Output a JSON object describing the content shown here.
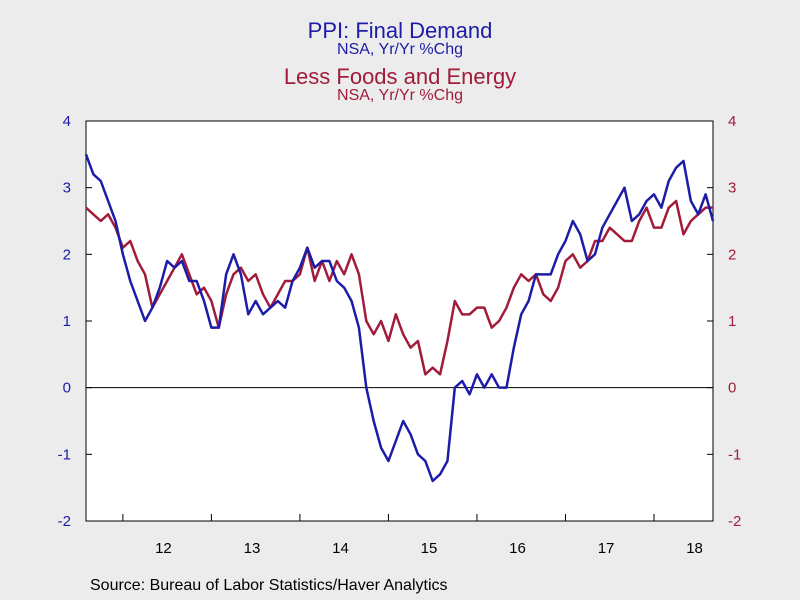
{
  "titles": {
    "series1_title": "PPI: Final Demand",
    "series1_subtitle": "NSA, Yr/Yr %Chg",
    "series2_title": "Less Foods and Energy",
    "series2_subtitle": "NSA, Yr/Yr %Chg"
  },
  "source": "Source:  Bureau of Labor Statistics/Haver Analytics",
  "colors": {
    "series1": "#1c1ca8",
    "series2": "#a11c3a",
    "background": "#ececec",
    "plot_background": "#ffffff"
  },
  "chart_data": {
    "type": "line",
    "x_ticks": [
      "12",
      "13",
      "14",
      "15",
      "16",
      "17",
      "18"
    ],
    "x_range": [
      "2011-08",
      "2018-09"
    ],
    "ylim": [
      -2,
      4
    ],
    "y_ticks_left": [
      "4",
      "3",
      "2",
      "1",
      "0",
      "-1",
      "-2"
    ],
    "y_ticks_right": [
      "4",
      "3",
      "2",
      "1",
      "0",
      "-1",
      "-2"
    ],
    "zero_line": true,
    "grid": false,
    "series": [
      {
        "name": "PPI: Final Demand",
        "axis": "left",
        "points": [
          [
            "2011-08",
            3.5
          ],
          [
            "2011-09",
            3.2
          ],
          [
            "2011-10",
            3.1
          ],
          [
            "2011-11",
            2.8
          ],
          [
            "2011-12",
            2.5
          ],
          [
            "2012-01",
            2.0
          ],
          [
            "2012-02",
            1.6
          ],
          [
            "2012-03",
            1.3
          ],
          [
            "2012-04",
            1.0
          ],
          [
            "2012-05",
            1.2
          ],
          [
            "2012-06",
            1.5
          ],
          [
            "2012-07",
            1.9
          ],
          [
            "2012-08",
            1.8
          ],
          [
            "2012-09",
            1.9
          ],
          [
            "2012-10",
            1.6
          ],
          [
            "2012-11",
            1.6
          ],
          [
            "2012-12",
            1.3
          ],
          [
            "2013-01",
            0.9
          ],
          [
            "2013-02",
            0.9
          ],
          [
            "2013-03",
            1.7
          ],
          [
            "2013-04",
            2.0
          ],
          [
            "2013-05",
            1.7
          ],
          [
            "2013-06",
            1.1
          ],
          [
            "2013-07",
            1.3
          ],
          [
            "2013-08",
            1.1
          ],
          [
            "2013-09",
            1.2
          ],
          [
            "2013-10",
            1.3
          ],
          [
            "2013-11",
            1.2
          ],
          [
            "2013-12",
            1.6
          ],
          [
            "2014-01",
            1.8
          ],
          [
            "2014-02",
            2.1
          ],
          [
            "2014-03",
            1.8
          ],
          [
            "2014-04",
            1.9
          ],
          [
            "2014-05",
            1.9
          ],
          [
            "2014-06",
            1.6
          ],
          [
            "2014-07",
            1.5
          ],
          [
            "2014-08",
            1.3
          ],
          [
            "2014-09",
            0.9
          ],
          [
            "2014-10",
            0.0
          ],
          [
            "2014-11",
            -0.5
          ],
          [
            "2014-12",
            -0.9
          ],
          [
            "2015-01",
            -1.1
          ],
          [
            "2015-02",
            -0.8
          ],
          [
            "2015-03",
            -0.5
          ],
          [
            "2015-04",
            -0.7
          ],
          [
            "2015-05",
            -1.0
          ],
          [
            "2015-06",
            -1.1
          ],
          [
            "2015-07",
            -1.4
          ],
          [
            "2015-08",
            -1.3
          ],
          [
            "2015-09",
            -1.1
          ],
          [
            "2015-10",
            0.0
          ],
          [
            "2015-11",
            0.1
          ],
          [
            "2015-12",
            -0.1
          ],
          [
            "2016-01",
            0.2
          ],
          [
            "2016-02",
            0.0
          ],
          [
            "2016-03",
            0.2
          ],
          [
            "2016-04",
            0.0
          ],
          [
            "2016-05",
            0.0
          ],
          [
            "2016-06",
            0.6
          ],
          [
            "2016-07",
            1.1
          ],
          [
            "2016-08",
            1.3
          ],
          [
            "2016-09",
            1.7
          ],
          [
            "2016-10",
            1.7
          ],
          [
            "2016-11",
            1.7
          ],
          [
            "2016-12",
            2.0
          ],
          [
            "2017-01",
            2.2
          ],
          [
            "2017-02",
            2.5
          ],
          [
            "2017-03",
            2.3
          ],
          [
            "2017-04",
            1.9
          ],
          [
            "2017-05",
            2.0
          ],
          [
            "2017-06",
            2.4
          ],
          [
            "2017-07",
            2.6
          ],
          [
            "2017-08",
            2.8
          ],
          [
            "2017-09",
            3.0
          ],
          [
            "2017-10",
            2.5
          ],
          [
            "2017-11",
            2.6
          ],
          [
            "2017-12",
            2.8
          ],
          [
            "2018-01",
            2.9
          ],
          [
            "2018-02",
            2.7
          ],
          [
            "2018-03",
            3.1
          ],
          [
            "2018-04",
            3.3
          ],
          [
            "2018-05",
            3.4
          ],
          [
            "2018-06",
            2.8
          ],
          [
            "2018-07",
            2.6
          ],
          [
            "2018-08",
            2.9
          ],
          [
            "2018-09",
            2.5
          ]
        ]
      },
      {
        "name": "Less Foods and Energy",
        "axis": "right",
        "points": [
          [
            "2011-08",
            2.7
          ],
          [
            "2011-09",
            2.6
          ],
          [
            "2011-10",
            2.5
          ],
          [
            "2011-11",
            2.6
          ],
          [
            "2011-12",
            2.4
          ],
          [
            "2012-01",
            2.1
          ],
          [
            "2012-02",
            2.2
          ],
          [
            "2012-03",
            1.9
          ],
          [
            "2012-04",
            1.7
          ],
          [
            "2012-05",
            1.2
          ],
          [
            "2012-06",
            1.4
          ],
          [
            "2012-07",
            1.6
          ],
          [
            "2012-08",
            1.8
          ],
          [
            "2012-09",
            2.0
          ],
          [
            "2012-10",
            1.7
          ],
          [
            "2012-11",
            1.4
          ],
          [
            "2012-12",
            1.5
          ],
          [
            "2013-01",
            1.3
          ],
          [
            "2013-02",
            0.9
          ],
          [
            "2013-03",
            1.4
          ],
          [
            "2013-04",
            1.7
          ],
          [
            "2013-05",
            1.8
          ],
          [
            "2013-06",
            1.6
          ],
          [
            "2013-07",
            1.7
          ],
          [
            "2013-08",
            1.4
          ],
          [
            "2013-09",
            1.2
          ],
          [
            "2013-10",
            1.4
          ],
          [
            "2013-11",
            1.6
          ],
          [
            "2013-12",
            1.6
          ],
          [
            "2014-01",
            1.7
          ],
          [
            "2014-02",
            2.1
          ],
          [
            "2014-03",
            1.6
          ],
          [
            "2014-04",
            1.9
          ],
          [
            "2014-05",
            1.6
          ],
          [
            "2014-06",
            1.9
          ],
          [
            "2014-07",
            1.7
          ],
          [
            "2014-08",
            2.0
          ],
          [
            "2014-09",
            1.7
          ],
          [
            "2014-10",
            1.0
          ],
          [
            "2014-11",
            0.8
          ],
          [
            "2014-12",
            1.0
          ],
          [
            "2015-01",
            0.7
          ],
          [
            "2015-02",
            1.1
          ],
          [
            "2015-03",
            0.8
          ],
          [
            "2015-04",
            0.6
          ],
          [
            "2015-05",
            0.7
          ],
          [
            "2015-06",
            0.2
          ],
          [
            "2015-07",
            0.3
          ],
          [
            "2015-08",
            0.2
          ],
          [
            "2015-09",
            0.7
          ],
          [
            "2015-10",
            1.3
          ],
          [
            "2015-11",
            1.1
          ],
          [
            "2015-12",
            1.1
          ],
          [
            "2016-01",
            1.2
          ],
          [
            "2016-02",
            1.2
          ],
          [
            "2016-03",
            0.9
          ],
          [
            "2016-04",
            1.0
          ],
          [
            "2016-05",
            1.2
          ],
          [
            "2016-06",
            1.5
          ],
          [
            "2016-07",
            1.7
          ],
          [
            "2016-08",
            1.6
          ],
          [
            "2016-09",
            1.7
          ],
          [
            "2016-10",
            1.4
          ],
          [
            "2016-11",
            1.3
          ],
          [
            "2016-12",
            1.5
          ],
          [
            "2017-01",
            1.9
          ],
          [
            "2017-02",
            2.0
          ],
          [
            "2017-03",
            1.8
          ],
          [
            "2017-04",
            1.9
          ],
          [
            "2017-05",
            2.2
          ],
          [
            "2017-06",
            2.2
          ],
          [
            "2017-07",
            2.4
          ],
          [
            "2017-08",
            2.3
          ],
          [
            "2017-09",
            2.2
          ],
          [
            "2017-10",
            2.2
          ],
          [
            "2017-11",
            2.5
          ],
          [
            "2017-12",
            2.7
          ],
          [
            "2018-01",
            2.4
          ],
          [
            "2018-02",
            2.4
          ],
          [
            "2018-03",
            2.7
          ],
          [
            "2018-04",
            2.8
          ],
          [
            "2018-05",
            2.3
          ],
          [
            "2018-06",
            2.5
          ],
          [
            "2018-07",
            2.6
          ],
          [
            "2018-08",
            2.7
          ],
          [
            "2018-09",
            2.7
          ]
        ]
      }
    ]
  }
}
